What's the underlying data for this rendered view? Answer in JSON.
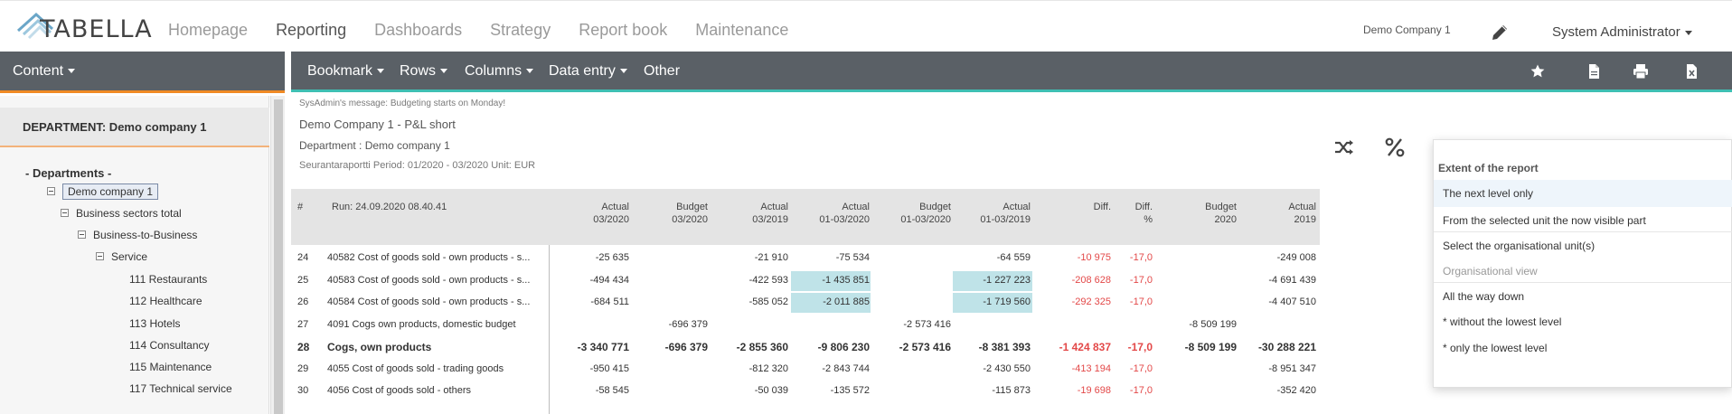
{
  "app": {
    "logo_text": "TABELLA",
    "nav": [
      "Homepage",
      "Reporting",
      "Dashboards",
      "Strategy",
      "Report book",
      "Maintenance"
    ],
    "active_nav": "Reporting",
    "company": "Demo Company 1",
    "user": "System Administrator"
  },
  "left": {
    "content_label": "Content",
    "dept_header": "DEPARTMENT: Demo company 1",
    "tree_root": "- Departments -",
    "tree": [
      {
        "label": "Demo company 1",
        "toggle": true,
        "selected": true
      },
      {
        "label": "Business sectors total",
        "toggle": true
      },
      {
        "label": "Business-to-Business",
        "toggle": true
      },
      {
        "label": "Service",
        "toggle": true
      },
      {
        "label": "111 Restaurants"
      },
      {
        "label": "112 Healthcare"
      },
      {
        "label": "113 Hotels"
      },
      {
        "label": "114 Consultancy"
      },
      {
        "label": "115 Maintenance"
      },
      {
        "label": "117 Technical service"
      }
    ]
  },
  "toolbar": {
    "items": [
      "Bookmark",
      "Rows",
      "Columns",
      "Data entry",
      "Other"
    ],
    "icons": [
      "star-icon",
      "pdf-icon",
      "print-icon",
      "excel-icon"
    ]
  },
  "report": {
    "sysmsg": "SysAdmin's message: Budgeting starts on Monday!",
    "title": "Demo Company 1 - P&L short",
    "department": "Department : Demo company 1",
    "period": "Seurantaraportti Period: 01/2020 - 03/2020 Unit: EUR",
    "tool_icons": [
      "shuffle-icon",
      "percent-icon"
    ]
  },
  "table": {
    "hash": "#",
    "run": "Run: 24.09.2020 08.40.41",
    "columns": [
      {
        "l1": "Actual",
        "l2": "03/2020"
      },
      {
        "l1": "Budget",
        "l2": "03/2020"
      },
      {
        "l1": "Actual",
        "l2": "03/2019"
      },
      {
        "l1": "Actual",
        "l2": "01-03/2020"
      },
      {
        "l1": "Budget",
        "l2": "01-03/2020"
      },
      {
        "l1": "Actual",
        "l2": "01-03/2019"
      },
      {
        "l1": "",
        "l2": "Diff."
      },
      {
        "l1": "Diff.",
        "l2": "%"
      },
      {
        "l1": "Budget",
        "l2": "2020"
      },
      {
        "l1": "Actual",
        "l2": "2019"
      }
    ],
    "rows": [
      {
        "n": "24",
        "label": "40582 Cost of goods sold - own products - s...",
        "v": [
          "-25 635",
          "",
          "-21 910",
          "-75 534",
          "",
          "-64 559",
          "-10 975",
          "-17,0",
          "",
          "-249 008"
        ]
      },
      {
        "n": "25",
        "label": "40583 Cost of goods sold - own products - s...",
        "v": [
          "-494 434",
          "",
          "-422 593",
          "-1 435 851",
          "",
          "-1 227 223",
          "-208 628",
          "-17,0",
          "",
          "-4 691 439"
        ],
        "hl": true
      },
      {
        "n": "26",
        "label": "40584 Cost of goods sold - own products - s...",
        "v": [
          "-684 511",
          "",
          "-585 052",
          "-2 011 885",
          "",
          "-1 719 560",
          "-292 325",
          "-17,0",
          "",
          "-4 407 510"
        ],
        "hl": true
      },
      {
        "n": "27",
        "label": "4091 Cogs own products, domestic budget",
        "v": [
          "",
          "-696 379",
          "",
          "",
          "-2 573 416",
          "",
          "",
          "",
          "-8 509 199",
          ""
        ]
      },
      {
        "n": "28",
        "label": "Cogs, own products",
        "v": [
          "-3 340 771",
          "-696 379",
          "-2 855 360",
          "-9 806 230",
          "-2 573 416",
          "-8 381 393",
          "-1 424 837",
          "-17,0",
          "-8 509 199",
          "-30 288 221"
        ],
        "bold": true
      },
      {
        "n": "29",
        "label": "4055 Cost of goods sold - trading goods",
        "v": [
          "-950 415",
          "",
          "-812 320",
          "-2 843 744",
          "",
          "-2 430 550",
          "-413 194",
          "-17,0",
          "",
          "-8 951 347"
        ]
      },
      {
        "n": "30",
        "label": "4056 Cost of goods sold - others",
        "v": [
          "-58 545",
          "",
          "-50 039",
          "-135 572",
          "",
          "-115 873",
          "-19 698",
          "-17,0",
          "",
          "-352 420"
        ]
      }
    ]
  },
  "popup": {
    "title": "Extent of the report",
    "options": [
      {
        "label": "The next level only",
        "hover": true
      },
      {
        "label": "From the selected unit the now visible part"
      },
      {
        "label": "Select the organisational unit(s)"
      },
      {
        "label": "Organisational view",
        "muted": true
      },
      {
        "label": "All the way down"
      },
      {
        "label": "* without the lowest level"
      },
      {
        "label": "* only the lowest level"
      }
    ]
  }
}
